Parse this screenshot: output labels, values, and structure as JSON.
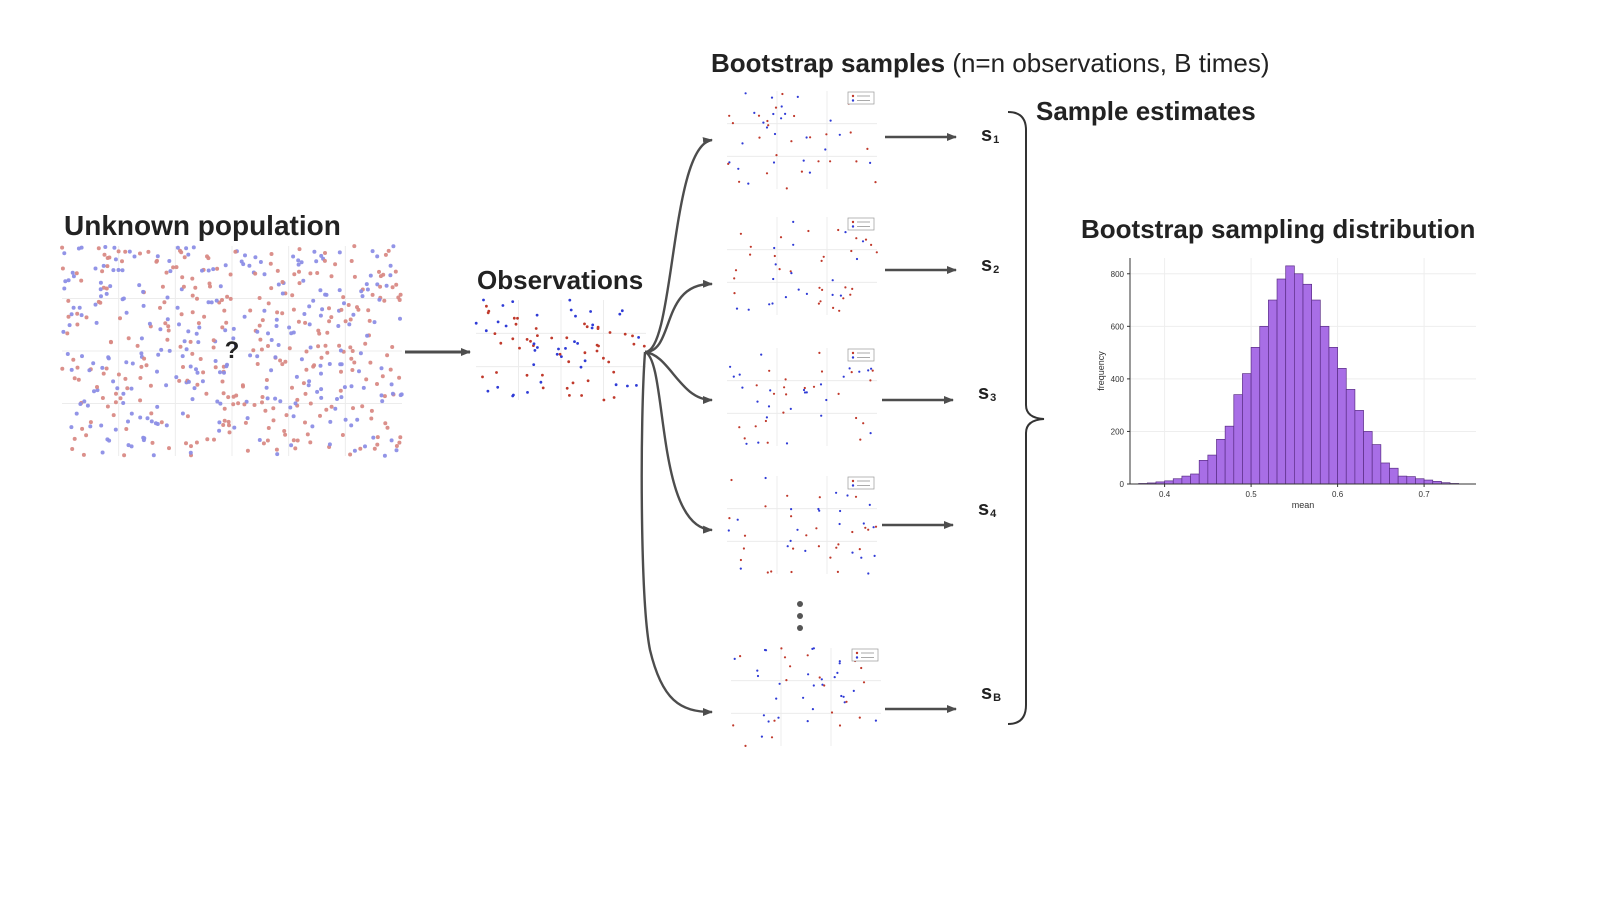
{
  "titles": {
    "population": "Unknown population",
    "observations": "Observations",
    "bootstrap": "Bootstrap samples",
    "bootstrap_sub": "(n=n observations, B times)",
    "estimates": "Sample estimates",
    "distribution": "Bootstrap sampling distribution"
  },
  "population_mark": "?",
  "estimates": [
    {
      "letter": "s",
      "sub": "1"
    },
    {
      "letter": "s",
      "sub": "2"
    },
    {
      "letter": "s",
      "sub": "3"
    },
    {
      "letter": "s",
      "sub": "4"
    },
    {
      "letter": "s",
      "sub": "B"
    }
  ],
  "colors": {
    "red": "#c0392b",
    "blue": "#2f3bd6",
    "pop_red": "#d98a85",
    "pop_blue": "#8c8ee6",
    "bar_fill": "#a86ee6",
    "bar_stroke": "#5a2d86",
    "arrow": "#4d4d4d"
  },
  "chart_data": {
    "type": "bar",
    "title": "",
    "xlabel": "mean",
    "ylabel": "frequency",
    "xlim": [
      0.36,
      0.76
    ],
    "ylim": [
      0,
      860
    ],
    "xticks": [
      0.4,
      0.5,
      0.6,
      0.7
    ],
    "yticks": [
      0,
      200,
      400,
      600,
      800
    ],
    "bin_width": 0.01,
    "bin_starts": [
      0.37,
      0.38,
      0.39,
      0.4,
      0.41,
      0.42,
      0.43,
      0.44,
      0.45,
      0.46,
      0.47,
      0.48,
      0.49,
      0.5,
      0.51,
      0.52,
      0.53,
      0.54,
      0.55,
      0.56,
      0.57,
      0.58,
      0.59,
      0.6,
      0.61,
      0.62,
      0.63,
      0.64,
      0.65,
      0.66,
      0.67,
      0.68,
      0.69,
      0.7,
      0.71,
      0.72,
      0.73
    ],
    "values": [
      2,
      4,
      8,
      12,
      20,
      30,
      38,
      90,
      110,
      170,
      220,
      340,
      420,
      520,
      600,
      700,
      780,
      830,
      800,
      760,
      700,
      600,
      520,
      440,
      360,
      280,
      200,
      150,
      80,
      60,
      30,
      28,
      20,
      15,
      10,
      5,
      2
    ]
  }
}
